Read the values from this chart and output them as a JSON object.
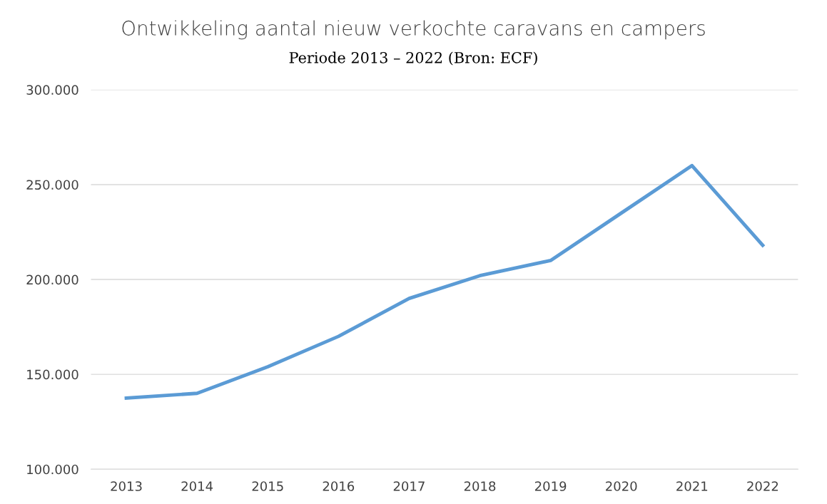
{
  "chart_data": {
    "type": "line",
    "title": "Ontwikkeling aantal nieuw verkochte caravans en campers",
    "subtitle": "Periode 2013 – 2022 (Bron: ECF)",
    "categories": [
      "2013",
      "2014",
      "2015",
      "2016",
      "2017",
      "2018",
      "2019",
      "2020",
      "2021",
      "2022"
    ],
    "series": [
      {
        "color": "#5b9bd5",
        "values": [
          137500,
          140000,
          154000,
          170000,
          190000,
          202000,
          210000,
          235000,
          260000,
          218000
        ]
      }
    ],
    "ylim": [
      100000,
      300000
    ],
    "yticks": [
      {
        "value": 100000,
        "label": "100.000"
      },
      {
        "value": 150000,
        "label": "150.000"
      },
      {
        "value": 200000,
        "label": "200.000"
      },
      {
        "value": 250000,
        "label": "250.000"
      },
      {
        "value": 300000,
        "label": "300.000"
      }
    ],
    "grid": "y",
    "marker": "none",
    "line_style": "solid"
  }
}
